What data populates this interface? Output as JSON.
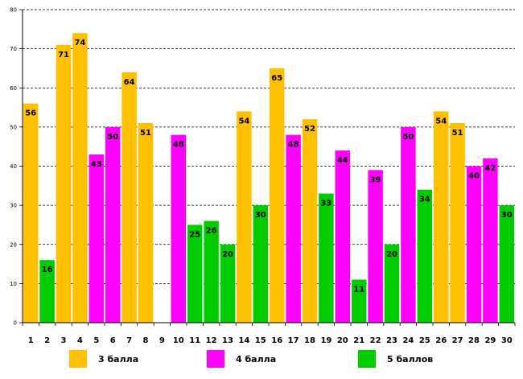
{
  "chart_data": {
    "type": "bar",
    "title": "",
    "xlabel": "",
    "ylabel": "",
    "ylim": [
      0,
      80
    ],
    "yticks": [
      0,
      10,
      20,
      30,
      40,
      50,
      60,
      70,
      80
    ],
    "grid": true,
    "categories": [
      "1",
      "2",
      "3",
      "4",
      "5",
      "6",
      "7",
      "8",
      "9",
      "10",
      "11",
      "12",
      "13",
      "14",
      "15",
      "16",
      "17",
      "18",
      "19",
      "20",
      "21",
      "22",
      "23",
      "24",
      "25",
      "26",
      "27",
      "28",
      "29",
      "30"
    ],
    "values": [
      56,
      16,
      71,
      74,
      43,
      50,
      64,
      51,
      null,
      48,
      25,
      26,
      20,
      54,
      30,
      65,
      48,
      52,
      33,
      44,
      11,
      39,
      20,
      50,
      34,
      54,
      51,
      40,
      42,
      30
    ],
    "groups": [
      3,
      5,
      3,
      3,
      4,
      4,
      3,
      3,
      null,
      4,
      5,
      5,
      5,
      3,
      5,
      3,
      4,
      3,
      5,
      4,
      5,
      4,
      5,
      4,
      5,
      3,
      3,
      4,
      4,
      5
    ],
    "series": [
      {
        "name": "3 балла",
        "group": 3,
        "color": "#FFC000"
      },
      {
        "name": "4 балла",
        "group": 4,
        "color": "#FF00FF"
      },
      {
        "name": "5 баллов",
        "group": 5,
        "color": "#00CC00"
      }
    ],
    "legend_position": "bottom"
  }
}
